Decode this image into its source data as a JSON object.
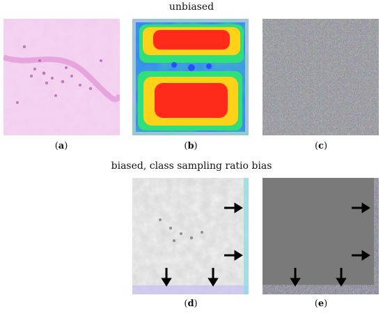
{
  "header_top": "unbiased",
  "header_bottom": "biased, class sampling ratio bias",
  "captions": [
    {
      "open": "(",
      "letter": "a",
      "close": ")"
    },
    {
      "open": "(",
      "letter": "b",
      "close": ")"
    },
    {
      "open": "(",
      "letter": "c",
      "close": ")"
    },
    {
      "open": "(",
      "letter": "d",
      "close": ")"
    },
    {
      "open": "(",
      "letter": "e",
      "close": ")"
    }
  ],
  "colors": {
    "he_background": "#f0c6ea",
    "he_nuclei": "#b25aa8",
    "heat_low": "#2b4cff",
    "heat_mid": "#2fe07a",
    "heat_high": "#ff2a1a",
    "noise_gray": "#8a8a8a",
    "gray_panel": "#7a7a7a",
    "arrow": "#000000"
  }
}
